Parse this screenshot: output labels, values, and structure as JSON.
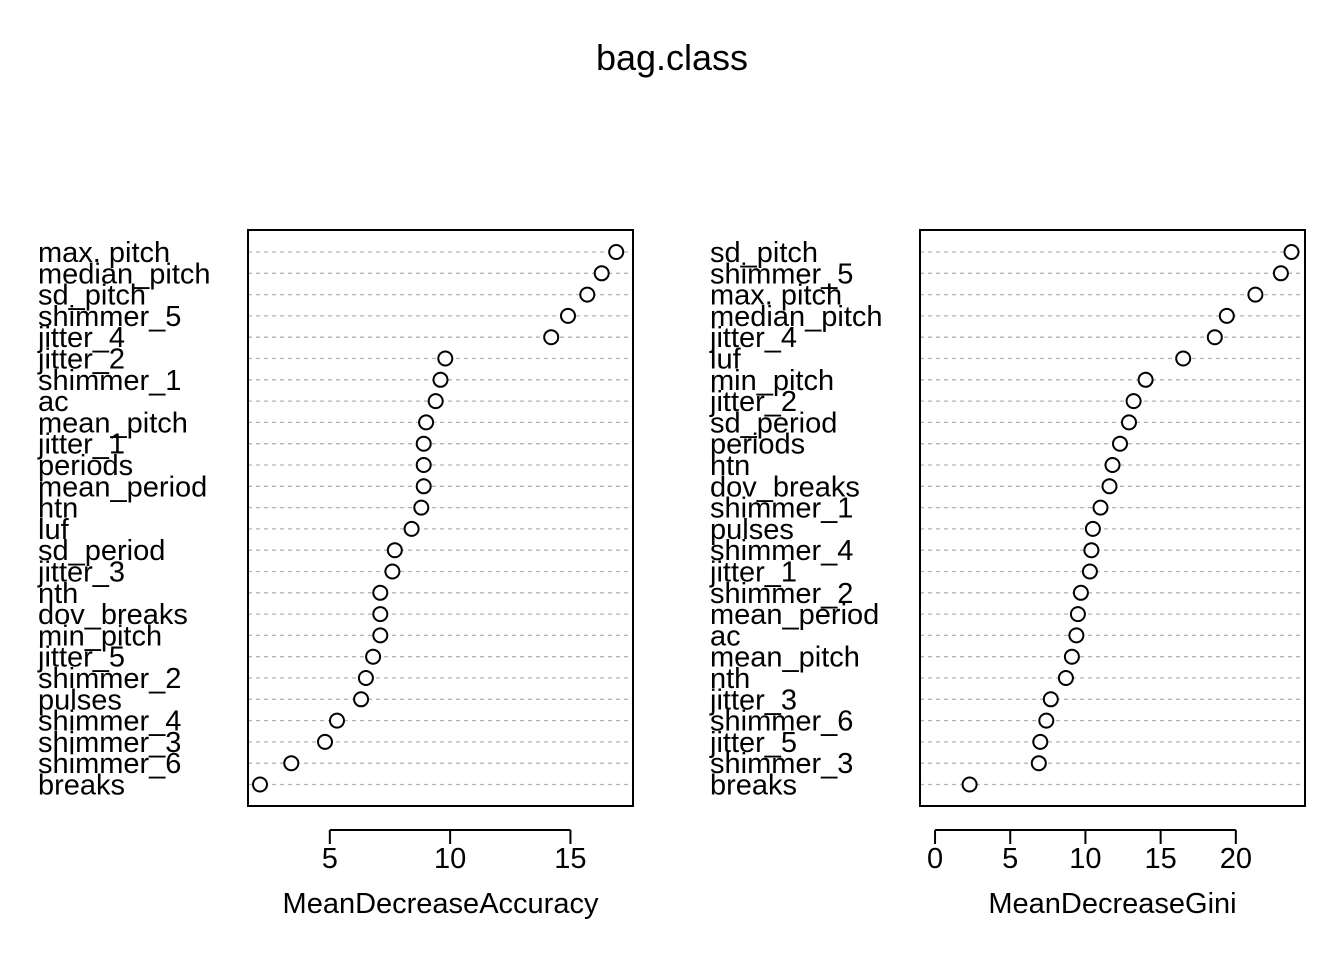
{
  "title": "bag.class",
  "chart_data": [
    {
      "type": "scatter",
      "subtype": "dotchart",
      "xlabel": "MeanDecreaseAccuracy",
      "xlim": [
        1.6,
        17.6
      ],
      "xticks": [
        5,
        10,
        15
      ],
      "grid": "dotted horizontal",
      "labels": [
        "max. pitch",
        "median_pitch",
        "sd_pitch",
        "shimmer_5",
        "jitter_4",
        "jitter_2",
        "shimmer_1",
        "ac",
        "mean_pitch",
        "jitter_1",
        "periods",
        "mean_period",
        "htn",
        "luf",
        "sd_period",
        "jitter_3",
        "nth",
        "dov_breaks",
        "min_pitch",
        "jitter_5",
        "shimmer_2",
        "pulses",
        "shimmer_4",
        "shimmer_3",
        "shimmer_6",
        "breaks"
      ],
      "values": [
        16.9,
        16.3,
        15.7,
        14.9,
        14.2,
        9.8,
        9.6,
        9.4,
        9.0,
        8.9,
        8.9,
        8.9,
        8.8,
        8.4,
        7.7,
        7.6,
        7.1,
        7.1,
        7.1,
        6.8,
        6.5,
        6.3,
        5.3,
        4.8,
        3.4,
        2.1
      ]
    },
    {
      "type": "scatter",
      "subtype": "dotchart",
      "xlabel": "MeanDecreaseGini",
      "xlim": [
        -1.0,
        24.6
      ],
      "xticks": [
        0,
        5,
        10,
        15,
        20
      ],
      "grid": "dotted horizontal",
      "labels": [
        "sd_pitch",
        "shimmer_5",
        "max. pitch",
        "median_pitch",
        "jitter_4",
        "luf",
        "min_pitch",
        "jitter_2",
        "sd_period",
        "periods",
        "htn",
        "dov_breaks",
        "shimmer_1",
        "pulses",
        "shimmer_4",
        "jitter_1",
        "shimmer_2",
        "mean_period",
        "ac",
        "mean_pitch",
        "nth",
        "jitter_3",
        "shimmer_6",
        "jitter_5",
        "shimmer_3",
        "breaks"
      ],
      "values": [
        23.7,
        23.0,
        21.3,
        19.4,
        18.6,
        16.5,
        14.0,
        13.2,
        12.9,
        12.3,
        11.8,
        11.6,
        11.0,
        10.5,
        10.4,
        10.3,
        9.7,
        9.5,
        9.4,
        9.1,
        8.7,
        7.7,
        7.4,
        7.0,
        6.9,
        2.3
      ]
    }
  ]
}
